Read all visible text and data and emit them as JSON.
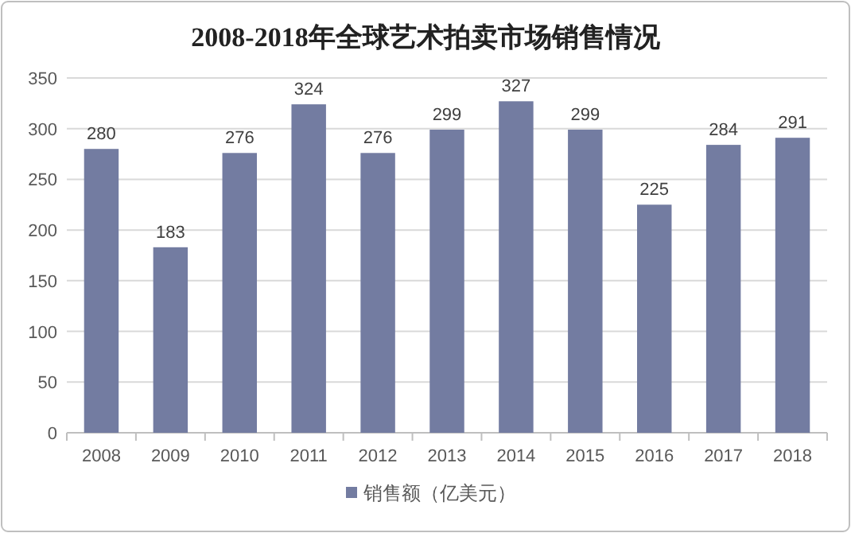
{
  "chart_data": {
    "type": "bar",
    "title": "2008-2018年全球艺术拍卖市场销售情况",
    "categories": [
      "2008",
      "2009",
      "2010",
      "2011",
      "2012",
      "2013",
      "2014",
      "2015",
      "2016",
      "2017",
      "2018"
    ],
    "series": [
      {
        "name": "销售额（亿美元）",
        "color": "#737ca1",
        "values": [
          280,
          183,
          276,
          324,
          276,
          299,
          327,
          299,
          225,
          284,
          291
        ]
      }
    ],
    "ylim": [
      0,
      350
    ],
    "yticks": [
      0,
      50,
      100,
      150,
      200,
      250,
      300,
      350
    ],
    "grid": "y",
    "legend": "bottom",
    "data_labels": true
  }
}
